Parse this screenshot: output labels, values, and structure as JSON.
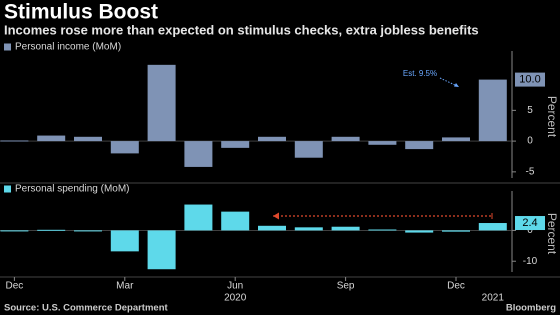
{
  "title": "Stimulus Boost",
  "subtitle": "Incomes rose more than expected on stimulus checks, extra jobless benefits",
  "source": "Source: U.S. Commerce Department",
  "branding": "Bloomberg",
  "chart_data": [
    {
      "type": "bar",
      "series": [
        {
          "name": "Personal income (MoM)",
          "color": "#7f93b5",
          "values": [
            0.1,
            0.9,
            0.7,
            -2.0,
            12.4,
            -4.2,
            -1.1,
            0.7,
            -2.7,
            0.7,
            -0.6,
            -1.3,
            0.6,
            10.0
          ],
          "value_labels": [
            null,
            null,
            null,
            null,
            null,
            null,
            null,
            null,
            null,
            null,
            null,
            null,
            null,
            "10.0"
          ]
        }
      ],
      "y_label": "Percent",
      "ylim": [
        -6,
        14
      ],
      "yticks": [
        -5,
        0,
        5
      ],
      "annotation": "Est. 9.5%"
    },
    {
      "type": "bar",
      "series": [
        {
          "name": "Personal spending (MoM)",
          "color": "#5ed9ea",
          "values": [
            0.0,
            0.2,
            -0.2,
            -6.8,
            -12.6,
            8.4,
            6.1,
            1.5,
            1.0,
            1.2,
            0.3,
            -0.7,
            -0.4,
            2.4
          ],
          "value_labels": [
            null,
            null,
            null,
            null,
            null,
            null,
            null,
            null,
            null,
            null,
            null,
            null,
            null,
            "2.4"
          ]
        }
      ],
      "y_label": "Percent",
      "ylim": [
        -13.5,
        11.5
      ],
      "yticks": [
        -10,
        0
      ],
      "categories": [
        "Dec",
        null,
        null,
        "Mar",
        null,
        null,
        "Jun",
        null,
        null,
        "Sep",
        null,
        null,
        "Dec",
        null
      ],
      "years": [
        "2020",
        "2021"
      ]
    }
  ]
}
